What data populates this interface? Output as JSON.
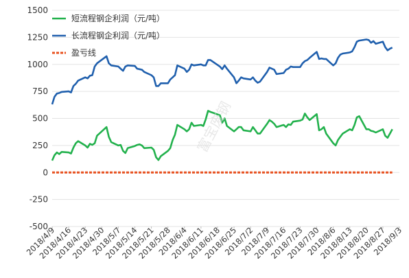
{
  "chart_data": {
    "type": "line",
    "title": "",
    "xlabel": "",
    "ylabel": "",
    "ylim": [
      -500,
      1500
    ],
    "yticks": [
      -500,
      -250,
      0,
      250,
      500,
      750,
      1000,
      1250,
      1500
    ],
    "x_tick_labels": [
      "2018/4/9",
      "2018/4/16",
      "2018/4/23",
      "2018/4/30",
      "2018/5/7",
      "2018/5/14",
      "2018/5/21",
      "2018/5/28",
      "2018/6/4",
      "2018/6/11",
      "2018/6/18",
      "2018/6/25",
      "2018/7/2",
      "2018/7/9",
      "2018/7/16",
      "2018/7/23",
      "2018/7/30",
      "2018/8/6",
      "2018/8/13",
      "2018/8/20",
      "2018/8/27",
      "2018/9/3"
    ],
    "x_range": [
      "2018/4/9",
      "2018/9/3"
    ],
    "grid": true,
    "legend_position": "top-left",
    "series": [
      {
        "name": "短流程钢企利润（元/吨）",
        "color": "#22b14c",
        "style": "solid",
        "points": [
          [
            "2018/4/9",
            110
          ],
          [
            "2018/4/10",
            160
          ],
          [
            "2018/4/11",
            185
          ],
          [
            "2018/4/12",
            170
          ],
          [
            "2018/4/13",
            190
          ],
          [
            "2018/4/16",
            185
          ],
          [
            "2018/4/17",
            175
          ],
          [
            "2018/4/18",
            230
          ],
          [
            "2018/4/19",
            270
          ],
          [
            "2018/4/20",
            290
          ],
          [
            "2018/4/23",
            250
          ],
          [
            "2018/4/24",
            230
          ],
          [
            "2018/4/25",
            265
          ],
          [
            "2018/4/26",
            255
          ],
          [
            "2018/4/27",
            270
          ],
          [
            "2018/4/28",
            340
          ],
          [
            "2018/5/2",
            420
          ],
          [
            "2018/5/3",
            330
          ],
          [
            "2018/5/4",
            280
          ],
          [
            "2018/5/7",
            250
          ],
          [
            "2018/5/8",
            255
          ],
          [
            "2018/5/9",
            200
          ],
          [
            "2018/5/10",
            180
          ],
          [
            "2018/5/11",
            225
          ],
          [
            "2018/5/14",
            245
          ],
          [
            "2018/5/15",
            255
          ],
          [
            "2018/5/16",
            260
          ],
          [
            "2018/5/17",
            250
          ],
          [
            "2018/5/18",
            225
          ],
          [
            "2018/5/21",
            230
          ],
          [
            "2018/5/22",
            210
          ],
          [
            "2018/5/23",
            140
          ],
          [
            "2018/5/24",
            115
          ],
          [
            "2018/5/25",
            150
          ],
          [
            "2018/5/28",
            200
          ],
          [
            "2018/5/29",
            225
          ],
          [
            "2018/5/30",
            300
          ],
          [
            "2018/5/31",
            350
          ],
          [
            "2018/6/1",
            440
          ],
          [
            "2018/6/4",
            400
          ],
          [
            "2018/6/5",
            380
          ],
          [
            "2018/6/6",
            400
          ],
          [
            "2018/6/7",
            460
          ],
          [
            "2018/6/8",
            430
          ],
          [
            "2018/6/11",
            440
          ],
          [
            "2018/6/12",
            430
          ],
          [
            "2018/6/13",
            490
          ],
          [
            "2018/6/14",
            570
          ],
          [
            "2018/6/15",
            560
          ],
          [
            "2018/6/19",
            530
          ],
          [
            "2018/6/20",
            460
          ],
          [
            "2018/6/21",
            500
          ],
          [
            "2018/6/22",
            430
          ],
          [
            "2018/6/25",
            380
          ],
          [
            "2018/6/26",
            400
          ],
          [
            "2018/6/27",
            420
          ],
          [
            "2018/6/28",
            420
          ],
          [
            "2018/6/29",
            390
          ],
          [
            "2018/7/2",
            380
          ],
          [
            "2018/7/3",
            420
          ],
          [
            "2018/7/4",
            390
          ],
          [
            "2018/7/5",
            360
          ],
          [
            "2018/7/6",
            360
          ],
          [
            "2018/7/9",
            450
          ],
          [
            "2018/7/10",
            485
          ],
          [
            "2018/7/11",
            470
          ],
          [
            "2018/7/12",
            450
          ],
          [
            "2018/7/13",
            420
          ],
          [
            "2018/7/16",
            440
          ],
          [
            "2018/7/17",
            420
          ],
          [
            "2018/7/18",
            445
          ],
          [
            "2018/7/19",
            440
          ],
          [
            "2018/7/20",
            470
          ],
          [
            "2018/7/23",
            480
          ],
          [
            "2018/7/24",
            490
          ],
          [
            "2018/7/25",
            545
          ],
          [
            "2018/7/26",
            510
          ],
          [
            "2018/7/27",
            485
          ],
          [
            "2018/7/30",
            540
          ],
          [
            "2018/7/31",
            390
          ],
          [
            "2018/8/1",
            400
          ],
          [
            "2018/8/2",
            420
          ],
          [
            "2018/8/3",
            360
          ],
          [
            "2018/8/6",
            270
          ],
          [
            "2018/8/7",
            250
          ],
          [
            "2018/8/8",
            300
          ],
          [
            "2018/8/9",
            330
          ],
          [
            "2018/8/10",
            360
          ],
          [
            "2018/8/13",
            400
          ],
          [
            "2018/8/14",
            390
          ],
          [
            "2018/8/15",
            440
          ],
          [
            "2018/8/16",
            510
          ],
          [
            "2018/8/17",
            520
          ],
          [
            "2018/8/20",
            400
          ],
          [
            "2018/8/21",
            400
          ],
          [
            "2018/8/22",
            385
          ],
          [
            "2018/8/23",
            380
          ],
          [
            "2018/8/24",
            370
          ],
          [
            "2018/8/27",
            400
          ],
          [
            "2018/8/28",
            340
          ],
          [
            "2018/8/29",
            320
          ],
          [
            "2018/8/30",
            360
          ],
          [
            "2018/8/31",
            400
          ]
        ]
      },
      {
        "name": "长流程钢企利润（元/吨）",
        "color": "#1f5fad",
        "style": "solid",
        "points": [
          [
            "2018/4/9",
            630
          ],
          [
            "2018/4/10",
            700
          ],
          [
            "2018/4/11",
            730
          ],
          [
            "2018/4/12",
            735
          ],
          [
            "2018/4/13",
            745
          ],
          [
            "2018/4/16",
            750
          ],
          [
            "2018/4/17",
            740
          ],
          [
            "2018/4/18",
            800
          ],
          [
            "2018/4/19",
            820
          ],
          [
            "2018/4/20",
            850
          ],
          [
            "2018/4/23",
            880
          ],
          [
            "2018/4/24",
            870
          ],
          [
            "2018/4/25",
            895
          ],
          [
            "2018/4/26",
            900
          ],
          [
            "2018/4/27",
            980
          ],
          [
            "2018/4/28",
            1010
          ],
          [
            "2018/5/2",
            1075
          ],
          [
            "2018/5/3",
            1010
          ],
          [
            "2018/5/4",
            990
          ],
          [
            "2018/5/7",
            980
          ],
          [
            "2018/5/8",
            960
          ],
          [
            "2018/5/9",
            940
          ],
          [
            "2018/5/10",
            980
          ],
          [
            "2018/5/11",
            990
          ],
          [
            "2018/5/14",
            985
          ],
          [
            "2018/5/15",
            960
          ],
          [
            "2018/5/16",
            955
          ],
          [
            "2018/5/17",
            950
          ],
          [
            "2018/5/18",
            930
          ],
          [
            "2018/5/21",
            900
          ],
          [
            "2018/5/22",
            880
          ],
          [
            "2018/5/23",
            800
          ],
          [
            "2018/5/24",
            800
          ],
          [
            "2018/5/25",
            825
          ],
          [
            "2018/5/28",
            825
          ],
          [
            "2018/5/29",
            860
          ],
          [
            "2018/5/30",
            880
          ],
          [
            "2018/5/31",
            900
          ],
          [
            "2018/6/1",
            990
          ],
          [
            "2018/6/4",
            960
          ],
          [
            "2018/6/5",
            930
          ],
          [
            "2018/6/6",
            950
          ],
          [
            "2018/6/7",
            1000
          ],
          [
            "2018/6/8",
            990
          ],
          [
            "2018/6/11",
            1000
          ],
          [
            "2018/6/12",
            990
          ],
          [
            "2018/6/13",
            990
          ],
          [
            "2018/6/14",
            1040
          ],
          [
            "2018/6/15",
            1040
          ],
          [
            "2018/6/19",
            980
          ],
          [
            "2018/6/20",
            955
          ],
          [
            "2018/6/21",
            990
          ],
          [
            "2018/6/22",
            960
          ],
          [
            "2018/6/25",
            880
          ],
          [
            "2018/6/26",
            825
          ],
          [
            "2018/6/27",
            850
          ],
          [
            "2018/6/28",
            880
          ],
          [
            "2018/6/29",
            870
          ],
          [
            "2018/7/2",
            860
          ],
          [
            "2018/7/3",
            880
          ],
          [
            "2018/7/4",
            850
          ],
          [
            "2018/7/5",
            830
          ],
          [
            "2018/7/6",
            840
          ],
          [
            "2018/7/9",
            930
          ],
          [
            "2018/7/10",
            970
          ],
          [
            "2018/7/11",
            960
          ],
          [
            "2018/7/12",
            950
          ],
          [
            "2018/7/13",
            910
          ],
          [
            "2018/7/16",
            920
          ],
          [
            "2018/7/17",
            950
          ],
          [
            "2018/7/18",
            960
          ],
          [
            "2018/7/19",
            980
          ],
          [
            "2018/7/20",
            975
          ],
          [
            "2018/7/23",
            975
          ],
          [
            "2018/7/24",
            1010
          ],
          [
            "2018/7/25",
            1030
          ],
          [
            "2018/7/26",
            1040
          ],
          [
            "2018/7/27",
            1060
          ],
          [
            "2018/7/30",
            1115
          ],
          [
            "2018/7/31",
            1050
          ],
          [
            "2018/8/1",
            1055
          ],
          [
            "2018/8/2",
            1050
          ],
          [
            "2018/8/3",
            1050
          ],
          [
            "2018/8/6",
            990
          ],
          [
            "2018/8/7",
            1010
          ],
          [
            "2018/8/8",
            1060
          ],
          [
            "2018/8/9",
            1090
          ],
          [
            "2018/8/10",
            1100
          ],
          [
            "2018/8/13",
            1110
          ],
          [
            "2018/8/14",
            1120
          ],
          [
            "2018/8/15",
            1160
          ],
          [
            "2018/8/16",
            1210
          ],
          [
            "2018/8/17",
            1220
          ],
          [
            "2018/8/20",
            1230
          ],
          [
            "2018/8/21",
            1225
          ],
          [
            "2018/8/22",
            1200
          ],
          [
            "2018/8/23",
            1215
          ],
          [
            "2018/8/24",
            1190
          ],
          [
            "2018/8/27",
            1210
          ],
          [
            "2018/8/28",
            1160
          ],
          [
            "2018/8/29",
            1130
          ],
          [
            "2018/8/30",
            1145
          ],
          [
            "2018/8/31",
            1155
          ]
        ]
      },
      {
        "name": "盈亏线",
        "color": "#e8501e",
        "style": "dashed",
        "points": [
          [
            "2018/4/9",
            0
          ],
          [
            "2018/8/31",
            0
          ]
        ]
      }
    ]
  },
  "watermark": {
    "text": "富宝废钢",
    "color": "#d0d0d0"
  }
}
